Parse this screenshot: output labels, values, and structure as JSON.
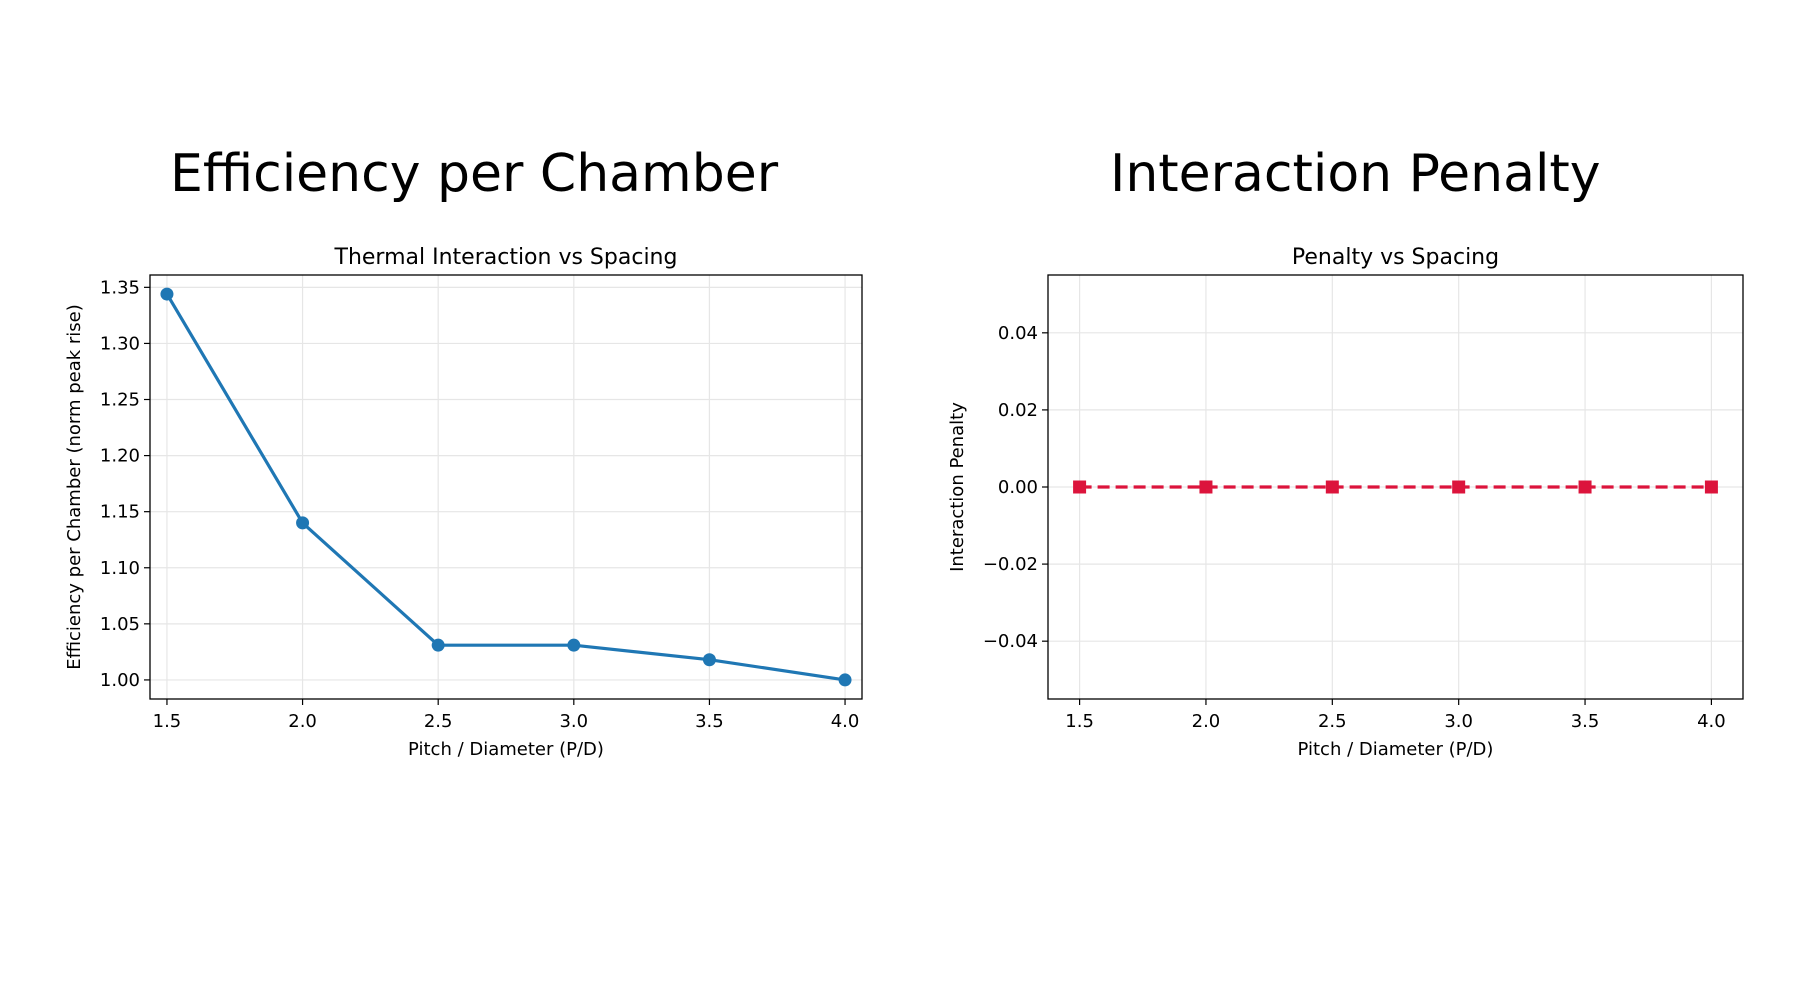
{
  "headings": {
    "left": "Efficiency per Chamber",
    "right": "Interaction Penalty"
  },
  "chart_data": [
    {
      "type": "line",
      "title": "Thermal Interaction vs Spacing",
      "xlabel": "Pitch / Diameter (P/D)",
      "ylabel": "Efficiency per Chamber (norm peak rise)",
      "x": [
        1.5,
        2.0,
        2.5,
        3.0,
        3.5,
        4.0
      ],
      "series": [
        {
          "values": [
            1.344,
            1.14,
            1.031,
            1.031,
            1.018,
            1.0
          ],
          "color": "#1f77b4",
          "marker": "circle",
          "linestyle": "solid"
        }
      ],
      "xlim": [
        1.4375,
        4.0625
      ],
      "ylim": [
        0.983,
        1.361
      ],
      "xticks": [
        "1.5",
        "2.0",
        "2.5",
        "3.0",
        "3.5",
        "4.0"
      ],
      "yticks": [
        "1.00",
        "1.05",
        "1.10",
        "1.15",
        "1.20",
        "1.25",
        "1.30",
        "1.35"
      ],
      "grid": true
    },
    {
      "type": "line",
      "title": "Penalty vs Spacing",
      "xlabel": "Pitch / Diameter (P/D)",
      "ylabel": "Interaction Penalty",
      "x": [
        1.5,
        2.0,
        2.5,
        3.0,
        3.5,
        4.0
      ],
      "series": [
        {
          "values": [
            0.0,
            0.0,
            0.0,
            0.0,
            0.0,
            0.0
          ],
          "color": "#dc143c",
          "marker": "square",
          "linestyle": "dashed"
        }
      ],
      "xlim": [
        1.375,
        4.125
      ],
      "ylim": [
        -0.055,
        0.055
      ],
      "xticks": [
        "1.5",
        "2.0",
        "2.5",
        "3.0",
        "3.5",
        "4.0"
      ],
      "yticks": [
        "−0.04",
        "−0.02",
        "0.00",
        "0.02",
        "0.04"
      ],
      "grid": true
    }
  ]
}
